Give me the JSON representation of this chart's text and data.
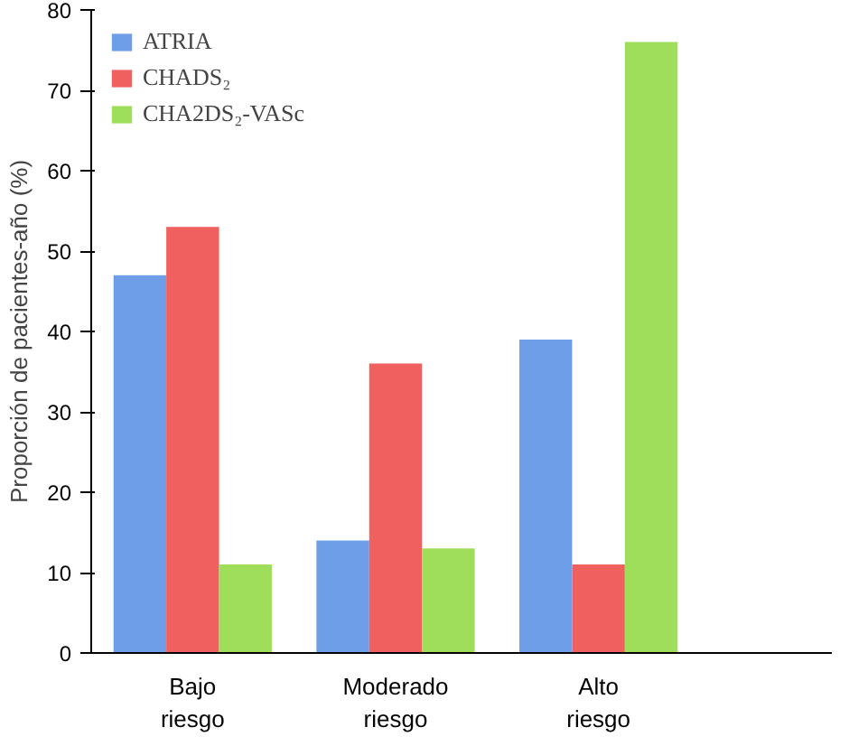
{
  "chart_data": {
    "type": "bar",
    "ylabel": "Proporción de pacientes-año (%)",
    "categories": [
      "Bajo riesgo",
      "Moderado riesgo",
      "Alto riesgo"
    ],
    "series": [
      {
        "name": "ATRIA",
        "color": "#6e9ee8",
        "values": [
          47,
          14,
          39
        ]
      },
      {
        "name": "CHADS₂",
        "color": "#f0605e",
        "values": [
          53,
          36,
          11
        ]
      },
      {
        "name": "CHA2DS₂-VASc",
        "color": "#9ede5a",
        "values": [
          11,
          13,
          76
        ]
      }
    ],
    "ylim": [
      0,
      80
    ],
    "yticks": [
      0,
      10,
      20,
      30,
      40,
      50,
      60,
      70,
      80
    ],
    "grid": false,
    "legend": "top left"
  }
}
